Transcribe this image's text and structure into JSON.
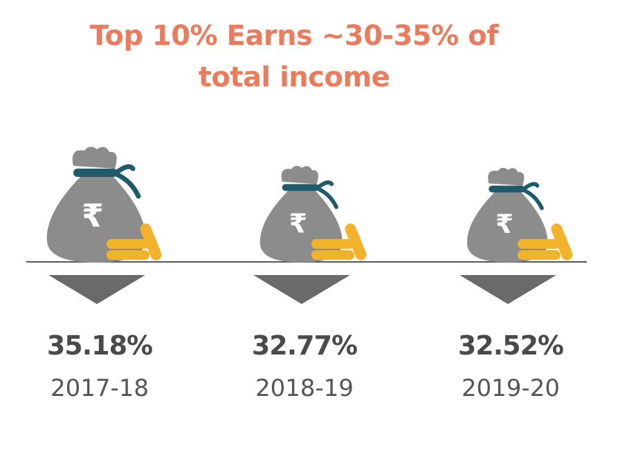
{
  "title": {
    "line1": "Top 10% Earns ~30-35% of",
    "line2": "total income"
  },
  "colors": {
    "title": "#ee7a5c",
    "bag": "#8c8c8c",
    "tie": "#1f5c6b",
    "coin": "#f2b32a",
    "arrow": "#6a6a6a",
    "text": "#4a4a4a"
  },
  "icons": [
    "money-bag-icon",
    "rupee-icon",
    "coin-stack-icon",
    "down-arrow-icon"
  ],
  "chart_data": {
    "type": "bar",
    "title": "Top 10% Earns ~30-35% of total income",
    "categories": [
      "2017-18",
      "2018-19",
      "2019-20"
    ],
    "values": [
      35.18,
      32.77,
      32.52
    ],
    "value_labels": [
      "35.18%",
      "32.77%",
      "32.52%"
    ]
  }
}
